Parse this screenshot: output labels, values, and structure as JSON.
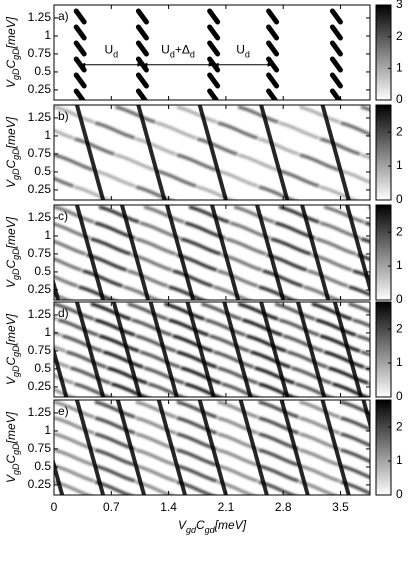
{
  "chart_data": {
    "type": "heatmap",
    "xlim": [
      0,
      3.86
    ],
    "xticks": [
      0,
      0.7,
      1.4,
      2.1,
      2.8,
      3.5
    ],
    "xlabel": [
      "V",
      "gd",
      "C",
      "gd",
      "[meV]"
    ],
    "panels": [
      {
        "label": "a)",
        "ylim": [
          0.11,
          1.43
        ],
        "yticks": [
          0.25,
          0.5,
          0.75,
          1,
          1.25
        ],
        "ylabel": [
          "V",
          "gD",
          "C",
          "gD",
          "[meV]"
        ],
        "clim": [
          0,
          3
        ],
        "cticks": [
          0,
          1,
          2,
          3
        ],
        "annotations": [
          [
            "U",
            "d"
          ],
          [
            "U",
            "d",
            "+Δ",
            "d"
          ],
          [
            "U",
            "d"
          ]
        ]
      },
      {
        "label": "b)",
        "ylim": [
          0.11,
          1.43
        ],
        "yticks": [
          0.25,
          0.5,
          0.75,
          1,
          1.25
        ],
        "ylabel": [
          "V",
          "gD",
          "C",
          "gD",
          "[meV]"
        ],
        "clim": [
          0,
          2.8
        ],
        "cticks": [
          0,
          1,
          2
        ]
      },
      {
        "label": "c)",
        "ylim": [
          0.11,
          1.43
        ],
        "yticks": [
          0.25,
          0.5,
          0.75,
          1,
          1.25
        ],
        "ylabel": [
          "V",
          "gD",
          "C",
          "gD",
          "[meV]"
        ],
        "clim": [
          0,
          2.8
        ],
        "cticks": [
          0,
          1,
          2
        ]
      },
      {
        "label": "d)",
        "ylim": [
          0.11,
          1.43
        ],
        "yticks": [
          0.25,
          0.5,
          0.75,
          1,
          1.25
        ],
        "ylabel": [
          "V",
          "gD",
          "C",
          "gD",
          "[meV]"
        ],
        "clim": [
          0,
          2.8
        ],
        "cticks": [
          0,
          1,
          2
        ]
      },
      {
        "label": "e)",
        "ylim": [
          0.11,
          1.43
        ],
        "yticks": [
          0.25,
          0.5,
          0.75,
          1,
          1.25
        ],
        "ylabel": [
          "V",
          "gD",
          "C",
          "gD",
          "[meV]"
        ],
        "clim": [
          0,
          2.8
        ],
        "cticks": [
          0,
          1,
          2
        ]
      }
    ]
  }
}
